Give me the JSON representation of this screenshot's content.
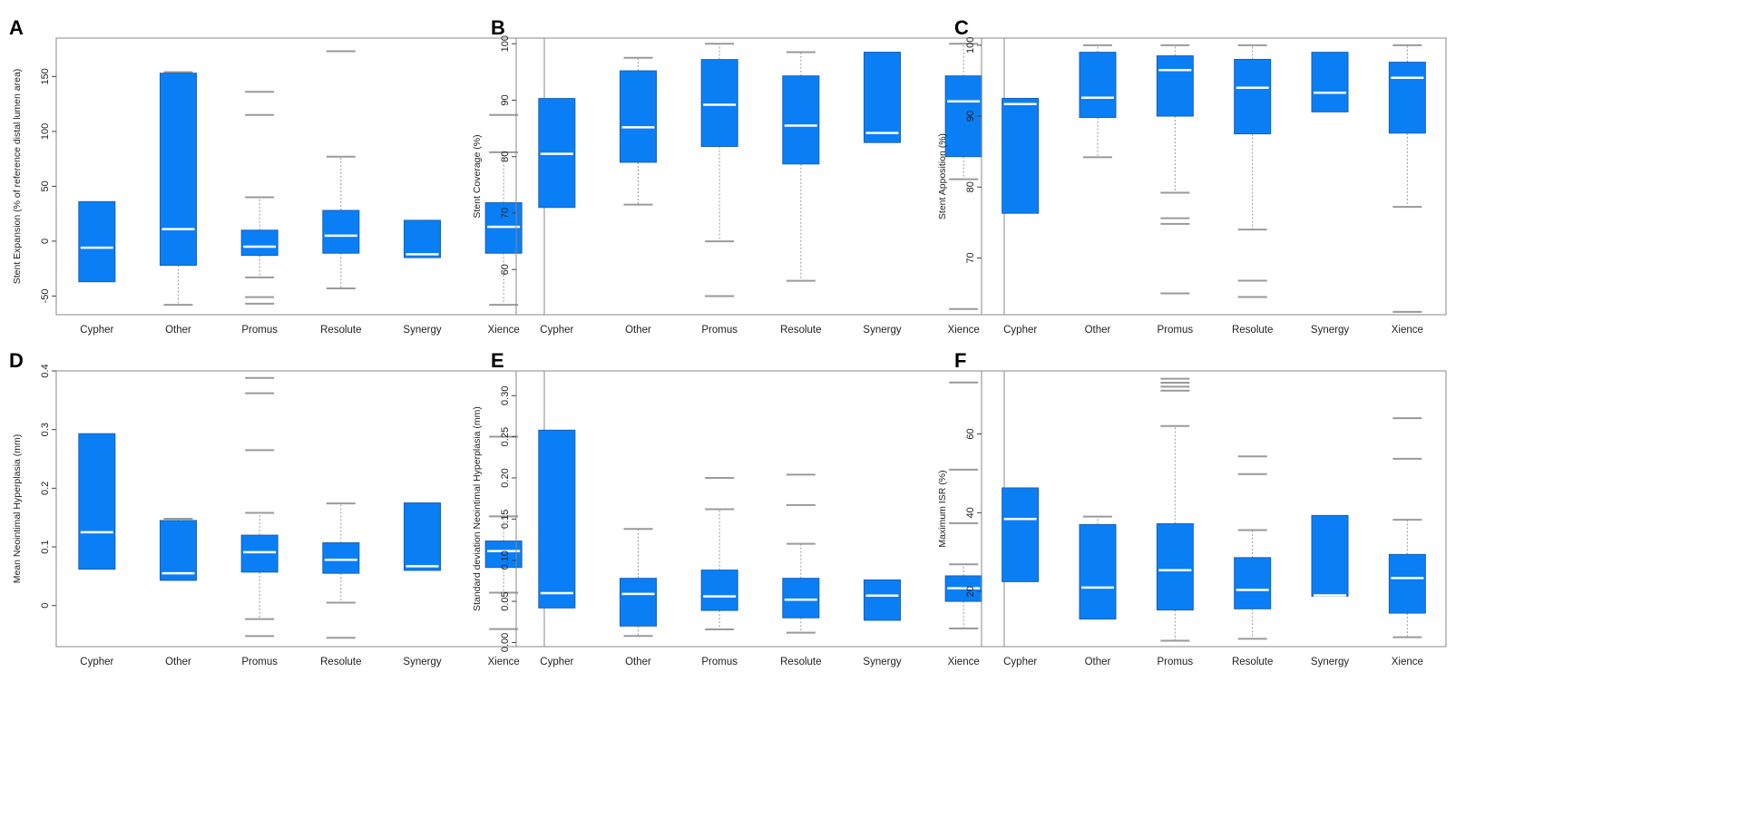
{
  "figure": {
    "box_color": "#0a7ff5",
    "box_edge_color": "#1a5fb4",
    "median_color": "#ffffff",
    "whisker_color": "#9a9a9a",
    "frame_color": "#888888"
  },
  "chart_data": [
    {
      "panel": "A",
      "type": "boxplot",
      "ylabel": "Stent Expansion (% of reference distal lumen area)",
      "ylim": [
        -67,
        185
      ],
      "yticks": [
        -50,
        0,
        50,
        100,
        150
      ],
      "categories": [
        "Cypher",
        "Other",
        "Promus",
        "Resolute",
        "Synergy",
        "Xience"
      ],
      "boxes": [
        {
          "q1": -37,
          "median": -6,
          "q3": 36,
          "whisker_low": null,
          "whisker_high": null,
          "outliers": []
        },
        {
          "q1": -22,
          "median": 11,
          "q3": 153,
          "whisker_low": -58,
          "whisker_high": 154,
          "outliers": []
        },
        {
          "q1": -13,
          "median": -5,
          "q3": 10,
          "whisker_low": -33,
          "whisker_high": 40,
          "outliers": [
            -51,
            -57,
            115,
            136
          ]
        },
        {
          "q1": -11,
          "median": 5,
          "q3": 28,
          "whisker_low": -43,
          "whisker_high": 77,
          "outliers": [
            173
          ]
        },
        {
          "q1": -15,
          "median": -12,
          "q3": 19,
          "whisker_low": null,
          "whisker_high": null,
          "outliers": []
        },
        {
          "q1": -11,
          "median": 13,
          "q3": 35,
          "whisker_low": -58,
          "whisker_high": 81,
          "outliers": [
            115
          ]
        }
      ]
    },
    {
      "panel": "B",
      "type": "boxplot",
      "ylabel": "Stent Coverage (%)",
      "ylim": [
        52,
        101
      ],
      "yticks": [
        60,
        70,
        80,
        90,
        100
      ],
      "categories": [
        "Cypher",
        "Other",
        "Promus",
        "Resolute",
        "Synergy",
        "Xience"
      ],
      "boxes": [
        {
          "q1": 71,
          "median": 80.5,
          "q3": 90.3,
          "whisker_low": null,
          "whisker_high": null,
          "outliers": []
        },
        {
          "q1": 79,
          "median": 85.2,
          "q3": 95.2,
          "whisker_low": 71.5,
          "whisker_high": 97.5,
          "outliers": []
        },
        {
          "q1": 81.8,
          "median": 89.2,
          "q3": 97.2,
          "whisker_low": 65,
          "whisker_high": 100,
          "outliers": [
            55.3
          ]
        },
        {
          "q1": 78.7,
          "median": 85.5,
          "q3": 94.3,
          "whisker_low": 58,
          "whisker_high": 98.5,
          "outliers": []
        },
        {
          "q1": 82.5,
          "median": 84.2,
          "q3": 98.5,
          "whisker_low": null,
          "whisker_high": null,
          "outliers": []
        },
        {
          "q1": 80,
          "median": 89.8,
          "q3": 94.3,
          "whisker_low": 76,
          "whisker_high": 100,
          "outliers": [
            53
          ]
        }
      ]
    },
    {
      "panel": "C",
      "type": "boxplot",
      "ylabel": "Stent Apposition (%)",
      "ylim": [
        62,
        101
      ],
      "yticks": [
        70,
        80,
        90,
        100
      ],
      "categories": [
        "Cypher",
        "Other",
        "Promus",
        "Resolute",
        "Synergy",
        "Xience"
      ],
      "boxes": [
        {
          "q1": 76.3,
          "median": 91.7,
          "q3": 92.5,
          "whisker_low": null,
          "whisker_high": null,
          "outliers": []
        },
        {
          "q1": 89.8,
          "median": 92.6,
          "q3": 99,
          "whisker_low": 84.2,
          "whisker_high": 100,
          "outliers": []
        },
        {
          "q1": 90,
          "median": 96.5,
          "q3": 98.5,
          "whisker_low": 79.2,
          "whisker_high": 100,
          "outliers": [
            75.6,
            74.8,
            65
          ]
        },
        {
          "q1": 87.5,
          "median": 94,
          "q3": 98,
          "whisker_low": 74,
          "whisker_high": 100,
          "outliers": [
            66.8,
            64.5
          ]
        },
        {
          "q1": 90.6,
          "median": 93.3,
          "q3": 99,
          "whisker_low": null,
          "whisker_high": null,
          "outliers": []
        },
        {
          "q1": 87.6,
          "median": 95.4,
          "q3": 97.6,
          "whisker_low": 77.2,
          "whisker_high": 100,
          "outliers": [
            62.4
          ]
        }
      ]
    },
    {
      "panel": "D",
      "type": "boxplot",
      "ylabel": "Mean Neointimal Hyperplasia (mm)",
      "ylim": [
        -0.07,
        0.4
      ],
      "yticks": [
        0.0,
        0.1,
        0.2,
        0.3,
        0.4
      ],
      "categories": [
        "Cypher",
        "Other",
        "Promus",
        "Resolute",
        "Synergy",
        "Xience"
      ],
      "boxes": [
        {
          "q1": 0.062,
          "median": 0.125,
          "q3": 0.293,
          "whisker_low": null,
          "whisker_high": null,
          "outliers": []
        },
        {
          "q1": 0.043,
          "median": 0.055,
          "q3": 0.145,
          "whisker_low": null,
          "whisker_high": 0.148,
          "outliers": []
        },
        {
          "q1": 0.057,
          "median": 0.091,
          "q3": 0.12,
          "whisker_low": -0.023,
          "whisker_high": 0.158,
          "outliers": [
            -0.052,
            0.265,
            0.362,
            0.388
          ]
        },
        {
          "q1": 0.055,
          "median": 0.078,
          "q3": 0.107,
          "whisker_low": 0.005,
          "whisker_high": 0.174,
          "outliers": [
            -0.055
          ]
        },
        {
          "q1": 0.06,
          "median": 0.067,
          "q3": 0.175,
          "whisker_low": null,
          "whisker_high": null,
          "outliers": []
        },
        {
          "q1": 0.065,
          "median": 0.093,
          "q3": 0.11,
          "whisker_low": 0.022,
          "whisker_high": 0.152,
          "outliers": [
            -0.04,
            0.288
          ]
        }
      ]
    },
    {
      "panel": "E",
      "type": "boxplot",
      "ylabel": "Standard deviation Neointimal Hyperplasia (mm)",
      "ylim": [
        -0.005,
        0.33
      ],
      "yticks": [
        0.0,
        0.05,
        0.1,
        0.15,
        0.2,
        0.25,
        0.3
      ],
      "ytick_labels": [
        "0.00",
        "0.05",
        "0.10",
        "0.15",
        "0.20",
        "0.25",
        "0.30"
      ],
      "categories": [
        "Cypher",
        "Other",
        "Promus",
        "Resolute",
        "Synergy",
        "Xience"
      ],
      "boxes": [
        {
          "q1": 0.042,
          "median": 0.06,
          "q3": 0.258,
          "whisker_low": null,
          "whisker_high": null,
          "outliers": []
        },
        {
          "q1": 0.02,
          "median": 0.059,
          "q3": 0.078,
          "whisker_low": 0.008,
          "whisker_high": 0.138,
          "outliers": []
        },
        {
          "q1": 0.039,
          "median": 0.056,
          "q3": 0.088,
          "whisker_low": 0.016,
          "whisker_high": 0.162,
          "outliers": [
            0.2
          ]
        },
        {
          "q1": 0.03,
          "median": 0.052,
          "q3": 0.078,
          "whisker_low": 0.012,
          "whisker_high": 0.12,
          "outliers": [
            0.167,
            0.204
          ]
        },
        {
          "q1": 0.027,
          "median": 0.057,
          "q3": 0.076,
          "whisker_low": null,
          "whisker_high": null,
          "outliers": []
        },
        {
          "q1": 0.05,
          "median": 0.066,
          "q3": 0.081,
          "whisker_low": 0.017,
          "whisker_high": 0.095,
          "outliers": [
            0.145,
            0.21,
            0.316
          ]
        }
      ]
    },
    {
      "panel": "F",
      "type": "boxplot",
      "ylabel": "Maximum ISR (%)",
      "ylim": [
        6,
        76
      ],
      "yticks": [
        20,
        40,
        60
      ],
      "categories": [
        "Cypher",
        "Other",
        "Promus",
        "Resolute",
        "Synergy",
        "Xience"
      ],
      "boxes": [
        {
          "q1": 22.5,
          "median": 38.4,
          "q3": 46.3,
          "whisker_low": null,
          "whisker_high": null,
          "outliers": []
        },
        {
          "q1": 13,
          "median": 21,
          "q3": 37,
          "whisker_low": null,
          "whisker_high": 39,
          "outliers": []
        },
        {
          "q1": 15.3,
          "median": 25.4,
          "q3": 37.2,
          "whisker_low": 7.5,
          "whisker_high": 62,
          "outliers": [
            71,
            72,
            73,
            74
          ]
        },
        {
          "q1": 15.6,
          "median": 20.4,
          "q3": 28.6,
          "whisker_low": 8,
          "whisker_high": 35.6,
          "outliers": [
            49.8,
            54.3
          ]
        },
        {
          "q1": 18.8,
          "median": 19,
          "q3": 39.3,
          "whisker_low": null,
          "whisker_high": null,
          "outliers": []
        },
        {
          "q1": 14.5,
          "median": 23.4,
          "q3": 29.4,
          "whisker_low": 8.4,
          "whisker_high": 38.2,
          "outliers": [
            53.7,
            64
          ]
        }
      ]
    }
  ]
}
